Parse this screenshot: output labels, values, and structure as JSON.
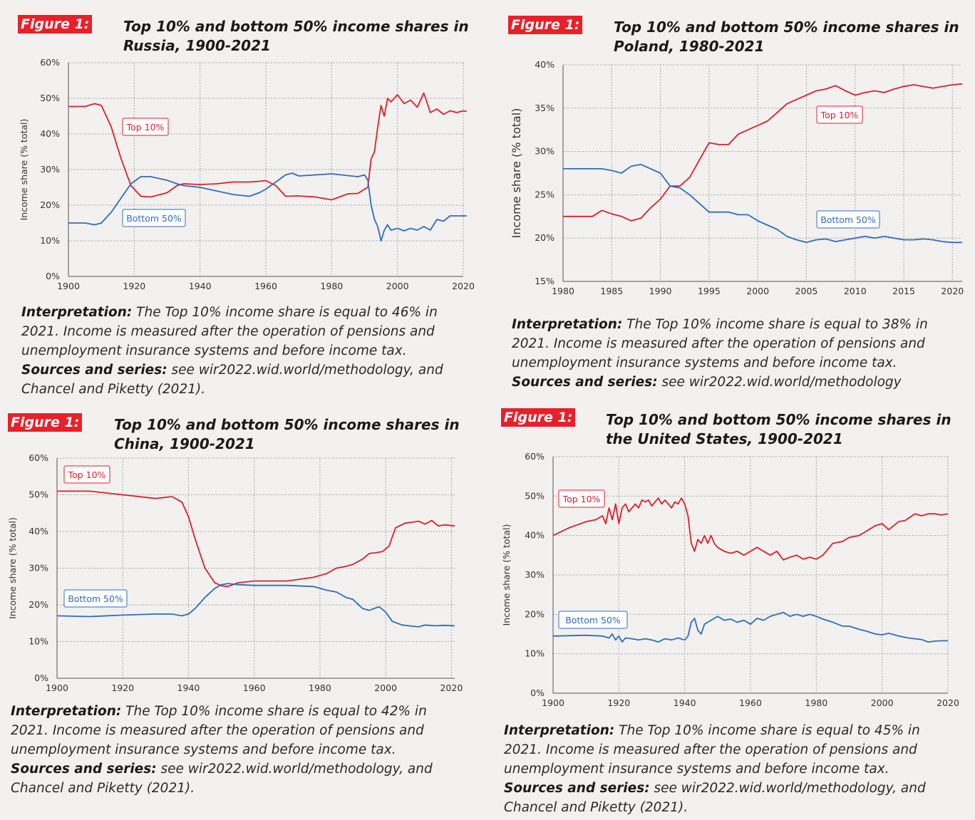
{
  "colors": {
    "figure_label_bg": "#e8202a",
    "top10": "#e01e28",
    "bottom50": "#2f6cc0",
    "grid": "#8f8f8f"
  },
  "panels": [
    {
      "figure_label": "Figure 1:",
      "title": "Top 10% and bottom 50% income shares in Russia, 1900-2021",
      "interpretation_label": "Interpretation:",
      "interpretation_text": " The Top 10% income share is equal to 46% in 2021. Income is measured after the operation of pensions and unemployment insurance systems and before income tax.",
      "sources_label": "Sources and series:",
      "sources_text": " see wir2022.wid.world/methodology, and Chancel and Piketty (2021)."
    },
    {
      "figure_label": "Figure 1:",
      "title": "Top 10% and bottom 50% income shares in Poland, 1980-2021",
      "interpretation_label": "Interpretation:",
      "interpretation_text": " The Top 10% income share is equal to 38% in 2021. Income is measured after the operation of pensions and unemployment insurance systems and before income tax.",
      "sources_label": "Sources and series:",
      "sources_text": " see wir2022.wid.world/methodology"
    },
    {
      "figure_label": "Figure 1:",
      "title": "Top 10% and bottom 50% income shares in China, 1900-2021",
      "interpretation_label": "Interpretation:",
      "interpretation_text": " The Top 10% income share is equal to 42% in 2021. Income is measured after the operation of pensions and unemployment insurance systems and before income tax.",
      "sources_label": "Sources and series:",
      "sources_text": " see wir2022.wid.world/methodology, and Chancel and Piketty (2021)."
    },
    {
      "figure_label": "Figure 1:",
      "title": "Top 10% and bottom 50% income shares in the United States, 1900-2021",
      "interpretation_label": "Interpretation:",
      "interpretation_text": " The Top 10% income share is equal to 45% in 2021. Income is measured after the operation of pensions and unemployment insurance systems and before income tax.",
      "sources_label": "Sources and series:",
      "sources_text": " see wir2022.wid.world/methodology, and Chancel and Piketty (2021)."
    }
  ],
  "chart_data": [
    {
      "type": "line",
      "ylabel": "Income share (% total)",
      "xlim": [
        1900,
        2020
      ],
      "ylim": [
        0,
        60
      ],
      "xticks": [
        1900,
        1920,
        1940,
        1960,
        1980,
        2000,
        2020
      ],
      "xtick_labels": [
        "1900",
        "1920",
        "1940",
        "1960",
        "1980",
        "2000",
        "2020"
      ],
      "yticks": [
        0,
        10,
        20,
        30,
        40,
        50,
        60
      ],
      "ytick_labels": [
        "0%",
        "10%",
        "20%",
        "30%",
        "40%",
        "50%",
        "60%"
      ],
      "grid": true,
      "series": [
        {
          "name": "Top 10%",
          "x": [
            1900,
            1905,
            1908,
            1910,
            1913,
            1916,
            1919,
            1922,
            1925,
            1930,
            1933,
            1935,
            1940,
            1945,
            1950,
            1955,
            1958,
            1960,
            1963,
            1966,
            1970,
            1975,
            1980,
            1985,
            1988,
            1990,
            1991,
            1992,
            1993,
            1994,
            1995,
            1996,
            1997,
            1998,
            2000,
            2002,
            2004,
            2006,
            2008,
            2010,
            2012,
            2014,
            2016,
            2018,
            2020,
            2021
          ],
          "y": [
            47.7,
            47.7,
            48.5,
            48,
            42,
            33,
            25.5,
            22.5,
            22.3,
            23.5,
            25.5,
            26,
            25.8,
            26,
            26.5,
            26.5,
            26.7,
            26.9,
            25.5,
            22.5,
            22.6,
            22.3,
            21.5,
            23.2,
            23.3,
            24.5,
            25,
            33,
            35,
            42,
            48,
            45,
            50,
            49,
            51,
            48.5,
            49.5,
            47.5,
            51.5,
            46,
            47,
            45.5,
            46.5,
            46,
            46.5,
            46.3
          ]
        },
        {
          "name": "Bottom 50%",
          "x": [
            1900,
            1905,
            1908,
            1910,
            1913,
            1916,
            1919,
            1922,
            1925,
            1930,
            1933,
            1935,
            1940,
            1945,
            1950,
            1955,
            1958,
            1960,
            1963,
            1966,
            1968,
            1970,
            1975,
            1980,
            1985,
            1988,
            1990,
            1991,
            1992,
            1993,
            1994,
            1995,
            1996,
            1997,
            1998,
            2000,
            2002,
            2004,
            2006,
            2008,
            2010,
            2012,
            2014,
            2016,
            2018,
            2020,
            2021
          ],
          "y": [
            15,
            15,
            14.5,
            15,
            18,
            22,
            26,
            28,
            28,
            27,
            26,
            25.5,
            25,
            24,
            23,
            22.5,
            23.5,
            24.5,
            26.5,
            28.5,
            29,
            28.2,
            28.5,
            28.8,
            28.3,
            28,
            28.5,
            27,
            20,
            16,
            14,
            10,
            13,
            14.5,
            13,
            13.5,
            12.8,
            13.5,
            13,
            14,
            13,
            16,
            15.5,
            17,
            17,
            17,
            17
          ]
        }
      ]
    },
    {
      "type": "line",
      "ylabel": "Income share (% total)",
      "xlim": [
        1980,
        2021
      ],
      "ylim": [
        15,
        40
      ],
      "xticks": [
        1980,
        1985,
        1990,
        1995,
        2000,
        2005,
        2010,
        2015,
        2020
      ],
      "xtick_labels": [
        "1980",
        "1985",
        "1990",
        "1995",
        "2000",
        "2005",
        "2010",
        "2015",
        "2020"
      ],
      "yticks": [
        15,
        20,
        25,
        30,
        35,
        40
      ],
      "ytick_labels": [
        "15%",
        "20%",
        "25%",
        "30%",
        "35%",
        "40%"
      ],
      "grid": true,
      "series": [
        {
          "name": "Top 10%",
          "x": [
            1980,
            1983,
            1984,
            1985,
            1986,
            1987,
            1988,
            1989,
            1990,
            1991,
            1992,
            1993,
            1994,
            1995,
            1996,
            1997,
            1998,
            1999,
            2000,
            2001,
            2002,
            2003,
            2004,
            2005,
            2006,
            2007,
            2008,
            2009,
            2010,
            2011,
            2012,
            2013,
            2014,
            2015,
            2016,
            2017,
            2018,
            2019,
            2020,
            2021
          ],
          "y": [
            22.5,
            22.5,
            23.2,
            22.8,
            22.5,
            22,
            22.3,
            23.5,
            24.5,
            26,
            26,
            27,
            29,
            31,
            30.8,
            30.8,
            32,
            32.5,
            33,
            33.5,
            34.5,
            35.5,
            36,
            36.5,
            37,
            37.2,
            37.6,
            37,
            36.5,
            36.8,
            37,
            36.8,
            37.2,
            37.5,
            37.7,
            37.5,
            37.3,
            37.5,
            37.7,
            37.8
          ]
        },
        {
          "name": "Bottom 50%",
          "x": [
            1980,
            1983,
            1984,
            1985,
            1986,
            1987,
            1988,
            1989,
            1990,
            1991,
            1992,
            1993,
            1994,
            1995,
            1996,
            1997,
            1998,
            1999,
            2000,
            2001,
            2002,
            2003,
            2004,
            2005,
            2006,
            2007,
            2008,
            2009,
            2010,
            2011,
            2012,
            2013,
            2014,
            2015,
            2016,
            2017,
            2018,
            2019,
            2020,
            2021
          ],
          "y": [
            28,
            28,
            28,
            27.8,
            27.5,
            28.3,
            28.5,
            28,
            27.5,
            26,
            25.8,
            25,
            24,
            23,
            23,
            23,
            22.7,
            22.7,
            22,
            21.5,
            21,
            20.2,
            19.8,
            19.5,
            19.8,
            19.9,
            19.6,
            19.8,
            20,
            20.2,
            20,
            20.2,
            20,
            19.8,
            19.8,
            19.9,
            19.8,
            19.6,
            19.5,
            19.5
          ]
        }
      ]
    },
    {
      "type": "line",
      "ylabel": "Income share (% total)",
      "xlim": [
        1900,
        2021
      ],
      "ylim": [
        0,
        60
      ],
      "xticks": [
        1900,
        1920,
        1940,
        1960,
        1980,
        2000,
        2020
      ],
      "xtick_labels": [
        "1900",
        "1920",
        "1940",
        "1960",
        "1980",
        "2000",
        "2020"
      ],
      "yticks": [
        0,
        10,
        20,
        30,
        40,
        50,
        60
      ],
      "ytick_labels": [
        "0%",
        "10%",
        "20%",
        "30%",
        "40%",
        "50%",
        "60%"
      ],
      "grid": true,
      "series": [
        {
          "name": "Top 10%",
          "x": [
            1900,
            1910,
            1920,
            1930,
            1935,
            1938,
            1940,
            1942,
            1945,
            1948,
            1950,
            1952,
            1955,
            1960,
            1970,
            1978,
            1980,
            1982,
            1985,
            1988,
            1990,
            1993,
            1995,
            1997,
            1999,
            2001,
            2003,
            2006,
            2008,
            2010,
            2012,
            2014,
            2016,
            2018,
            2021
          ],
          "y": [
            51,
            51,
            50,
            49,
            49.5,
            48,
            44,
            38,
            30,
            26,
            25.2,
            25,
            26,
            26.5,
            26.5,
            27.5,
            28,
            28.5,
            30,
            30.5,
            31,
            32.5,
            34,
            34.2,
            34.5,
            36,
            41,
            42.3,
            42.5,
            42.8,
            42,
            43,
            41.5,
            41.8,
            41.5
          ]
        },
        {
          "name": "Bottom 50%",
          "x": [
            1900,
            1910,
            1920,
            1930,
            1935,
            1938,
            1940,
            1942,
            1945,
            1948,
            1950,
            1952,
            1955,
            1960,
            1970,
            1978,
            1980,
            1982,
            1985,
            1988,
            1990,
            1993,
            1995,
            1998,
            2000,
            2002,
            2005,
            2008,
            2010,
            2012,
            2015,
            2018,
            2021
          ],
          "y": [
            17,
            16.8,
            17.2,
            17.5,
            17.5,
            17,
            17.5,
            19,
            22,
            24.5,
            25.5,
            25.8,
            25.5,
            25.3,
            25.3,
            25,
            24.5,
            24,
            23.5,
            22,
            21.5,
            19,
            18.5,
            19.5,
            18,
            15.5,
            14.5,
            14.2,
            14,
            14.5,
            14.3,
            14.4,
            14.3
          ]
        }
      ]
    },
    {
      "type": "line",
      "ylabel": "Income share (% total)",
      "xlim": [
        1900,
        2020
      ],
      "ylim": [
        0,
        60
      ],
      "xticks": [
        1900,
        1920,
        1940,
        1960,
        1980,
        2000,
        2020
      ],
      "xtick_labels": [
        "1900",
        "1920",
        "1940",
        "1960",
        "1980",
        "2000",
        "2020"
      ],
      "yticks": [
        0,
        10,
        20,
        30,
        40,
        50,
        60
      ],
      "ytick_labels": [
        "0%",
        "10%",
        "20%",
        "30%",
        "40%",
        "50%",
        "60%"
      ],
      "grid": true,
      "series": [
        {
          "name": "Top 10%",
          "x": [
            1900,
            1905,
            1910,
            1913,
            1915,
            1916,
            1917,
            1918,
            1919,
            1920,
            1921,
            1922,
            1923,
            1924,
            1925,
            1926,
            1927,
            1928,
            1929,
            1930,
            1931,
            1932,
            1933,
            1934,
            1935,
            1936,
            1937,
            1938,
            1939,
            1940,
            1941,
            1942,
            1943,
            1944,
            1945,
            1946,
            1947,
            1948,
            1949,
            1950,
            1952,
            1954,
            1956,
            1958,
            1960,
            1962,
            1964,
            1966,
            1968,
            1970,
            1972,
            1974,
            1976,
            1978,
            1980,
            1982,
            1985,
            1988,
            1990,
            1993,
            1995,
            1998,
            2000,
            2002,
            2005,
            2007,
            2010,
            2012,
            2014,
            2016,
            2018,
            2020
          ],
          "y": [
            40,
            42,
            43.5,
            44,
            45,
            43,
            47,
            44,
            48,
            43,
            47,
            48,
            46,
            47,
            48,
            47,
            49,
            48.5,
            49,
            47.5,
            48.5,
            49.5,
            48,
            49,
            48,
            47,
            48.5,
            48,
            49.5,
            48,
            45,
            38,
            36,
            39,
            38,
            40,
            38,
            40,
            38,
            37,
            36,
            35.5,
            36,
            35,
            36,
            37,
            36,
            35,
            36,
            33.8,
            34.5,
            35,
            34,
            34.5,
            34,
            35,
            38,
            38.5,
            39.5,
            40,
            41,
            42.5,
            43,
            41.5,
            43.5,
            43.8,
            45.5,
            45,
            45.5,
            45.5,
            45.2,
            45.5
          ]
        },
        {
          "name": "Bottom 50%",
          "x": [
            1900,
            1910,
            1915,
            1917,
            1918,
            1919,
            1920,
            1921,
            1922,
            1924,
            1926,
            1928,
            1930,
            1932,
            1934,
            1936,
            1938,
            1940,
            1941,
            1942,
            1943,
            1944,
            1945,
            1946,
            1948,
            1950,
            1952,
            1954,
            1956,
            1958,
            1960,
            1962,
            1964,
            1966,
            1968,
            1970,
            1972,
            1974,
            1976,
            1978,
            1980,
            1982,
            1985,
            1988,
            1990,
            1993,
            1995,
            1998,
            2000,
            2002,
            2005,
            2008,
            2010,
            2012,
            2014,
            2016,
            2018,
            2020
          ],
          "y": [
            14.5,
            14.7,
            14.5,
            14,
            15,
            13.5,
            14.5,
            13,
            14,
            13.8,
            13.5,
            13.8,
            13.5,
            13,
            13.8,
            13.5,
            14,
            13.5,
            14.5,
            18,
            19,
            16,
            15,
            17.5,
            18.5,
            19.5,
            18.5,
            18.8,
            18,
            18.5,
            17.5,
            19,
            18.5,
            19.5,
            20,
            20.5,
            19.5,
            20,
            19.5,
            20,
            19.5,
            18.8,
            18,
            17,
            17,
            16.2,
            15.8,
            15,
            14.8,
            15.2,
            14.5,
            14,
            13.8,
            13.6,
            13,
            13.2,
            13.3,
            13.3
          ]
        }
      ]
    }
  ]
}
